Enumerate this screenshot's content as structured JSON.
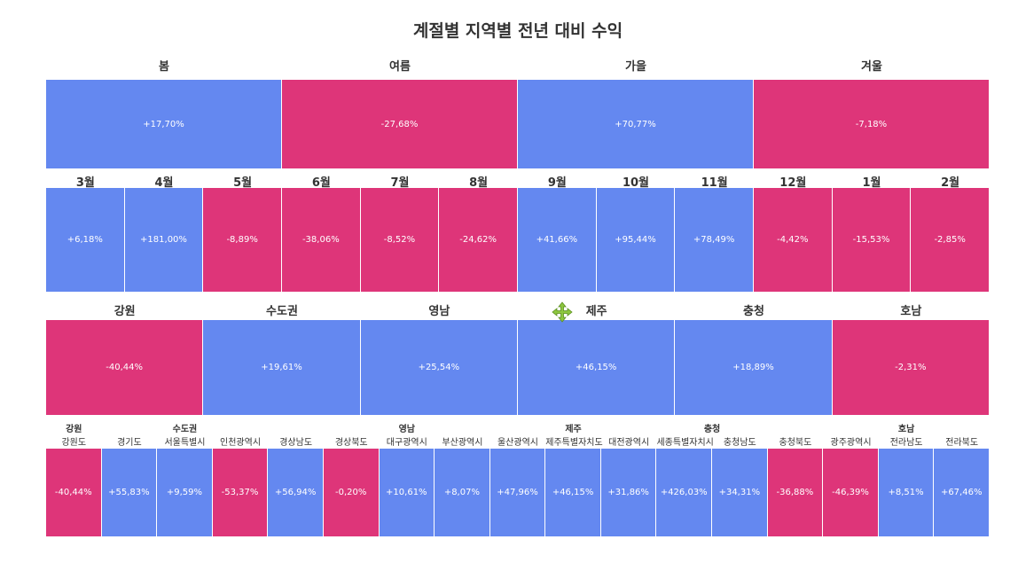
{
  "title": "계절별 지역별 전년 대비 수익",
  "colors": {
    "positive": "#6488f0",
    "negative": "#de3579"
  },
  "icons": {
    "cursor": "move-icon"
  },
  "chart_data": [
    {
      "type": "heatmap",
      "level": "season",
      "categories": [
        "봄",
        "여름",
        "가을",
        "겨울"
      ],
      "values": [
        17.7,
        -27.68,
        70.77,
        -7.18
      ],
      "labels": [
        "+17,70%",
        "-27,68%",
        "+70,77%",
        "-7,18%"
      ]
    },
    {
      "type": "heatmap",
      "level": "month",
      "categories": [
        "3월",
        "4월",
        "5월",
        "6월",
        "7월",
        "8월",
        "9월",
        "10월",
        "11월",
        "12월",
        "1월",
        "2월"
      ],
      "values": [
        6.18,
        181.0,
        -8.89,
        -38.06,
        -8.52,
        -24.62,
        41.66,
        95.44,
        78.49,
        -4.42,
        -15.53,
        -2.85
      ],
      "labels": [
        "+6,18%",
        "+181,00%",
        "-8,89%",
        "-38,06%",
        "-8,52%",
        "-24,62%",
        "+41,66%",
        "+95,44%",
        "+78,49%",
        "-4,42%",
        "-15,53%",
        "-2,85%"
      ]
    },
    {
      "type": "heatmap",
      "level": "region",
      "categories": [
        "강원",
        "수도권",
        "영남",
        "제주",
        "충청",
        "호남"
      ],
      "values": [
        -40.44,
        19.61,
        25.54,
        46.15,
        18.89,
        -2.31
      ],
      "labels": [
        "-40,44%",
        "+19,61%",
        "+25,54%",
        "+46,15%",
        "+18,89%",
        "-2,31%"
      ]
    },
    {
      "type": "heatmap",
      "level": "province",
      "groups": [
        {
          "name": "강원",
          "span": 1
        },
        {
          "name": "수도권",
          "span": 3
        },
        {
          "name": "영남",
          "span": 5
        },
        {
          "name": "제주",
          "span": 1
        },
        {
          "name": "충청",
          "span": 4
        },
        {
          "name": "호남",
          "span": 3
        }
      ],
      "categories": [
        "강원도",
        "경기도",
        "서울특별시",
        "인천광역시",
        "경상남도",
        "경상북도",
        "대구광역시",
        "부산광역시",
        "울산광역시",
        "제주특별자치도",
        "대전광역시",
        "세종특별자치시",
        "충청남도",
        "충청북도",
        "광주광역시",
        "전라남도",
        "전라북도"
      ],
      "values": [
        -40.44,
        55.83,
        9.59,
        -53.37,
        56.94,
        -0.2,
        10.61,
        8.07,
        47.96,
        46.15,
        31.86,
        426.03,
        34.31,
        -36.88,
        -46.39,
        8.51,
        67.46
      ],
      "labels": [
        "-40,44%",
        "+55,83%",
        "+9,59%",
        "-53,37%",
        "+56,94%",
        "-0,20%",
        "+10,61%",
        "+8,07%",
        "+47,96%",
        "+46,15%",
        "+31,86%",
        "+426,03%",
        "+34,31%",
        "-36,88%",
        "-46,39%",
        "+8,51%",
        "+67,46%"
      ]
    }
  ]
}
